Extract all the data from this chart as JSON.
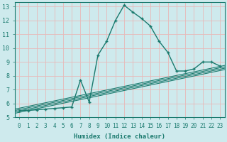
{
  "xlabel": "Humidex (Indice chaleur)",
  "bg_color": "#ceeaed",
  "grid_color": "#e8b8b8",
  "line_color": "#1a7a6e",
  "xlim": [
    -0.5,
    23.5
  ],
  "ylim": [
    5,
    13.3
  ],
  "yticks": [
    5,
    6,
    7,
    8,
    9,
    10,
    11,
    12,
    13
  ],
  "xticks": [
    0,
    1,
    2,
    3,
    4,
    5,
    6,
    7,
    8,
    9,
    10,
    11,
    12,
    13,
    14,
    15,
    16,
    17,
    18,
    19,
    20,
    21,
    22,
    23
  ],
  "main_x": [
    0,
    1,
    2,
    3,
    4,
    5,
    6,
    7,
    8,
    9,
    10,
    11,
    12,
    13,
    14,
    15,
    16,
    17,
    18,
    19,
    20,
    21,
    22,
    23
  ],
  "main_y": [
    5.5,
    5.5,
    5.55,
    5.6,
    5.65,
    5.7,
    5.75,
    7.7,
    6.1,
    9.5,
    10.5,
    12.0,
    13.1,
    12.6,
    12.15,
    11.6,
    10.5,
    9.7,
    8.35,
    8.35,
    8.5,
    9.0,
    9.0,
    8.7
  ],
  "ref_lines": [
    [
      5.3,
      8.45
    ],
    [
      5.4,
      8.55
    ],
    [
      5.5,
      8.65
    ],
    [
      5.6,
      8.75
    ]
  ]
}
